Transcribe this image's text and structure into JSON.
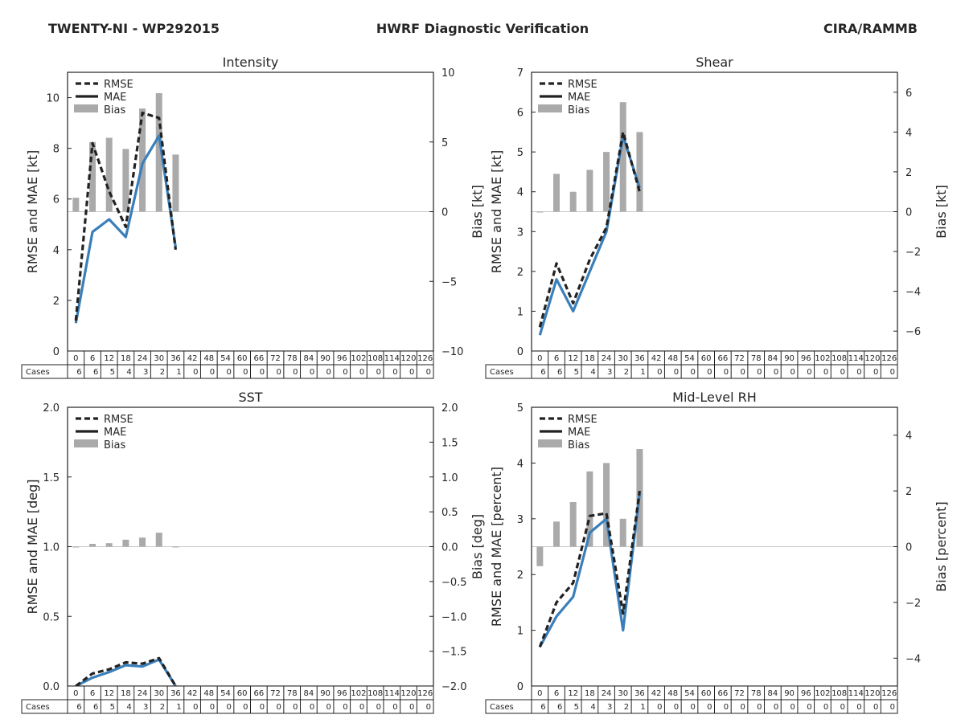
{
  "header": {
    "left": "TWENTY-NI - WP292015",
    "center": "HWRF Diagnostic Verification",
    "right": "CIRA/RAMMB"
  },
  "legend": {
    "rmse": "RMSE",
    "mae": "MAE",
    "bias": "Bias"
  },
  "colors": {
    "rmse": "#222222",
    "mae": "#3a7fba",
    "bias": "#aaaaaa",
    "zero": "#c8c8c8"
  },
  "table": {
    "cases_label": "Cases",
    "hours": [
      "0",
      "6",
      "12",
      "18",
      "24",
      "30",
      "36",
      "42",
      "48",
      "54",
      "60",
      "66",
      "72",
      "78",
      "84",
      "90",
      "96",
      "102",
      "108",
      "114",
      "120",
      "126"
    ],
    "cases": [
      "6",
      "6",
      "5",
      "4",
      "3",
      "2",
      "1",
      "0",
      "0",
      "0",
      "0",
      "0",
      "0",
      "0",
      "0",
      "0",
      "0",
      "0",
      "0",
      "0",
      "0",
      "0"
    ]
  },
  "chart_data": [
    {
      "type": "line",
      "title": "Intensity",
      "ylabel": "RMSE and MAE [kt]",
      "y2label": "Bias [kt]",
      "ylim": [
        0,
        11
      ],
      "yticks": [
        "0",
        "2",
        "4",
        "6",
        "8",
        "10"
      ],
      "y2lim": [
        -10,
        10
      ],
      "y2ticks": [
        "−10",
        "−5",
        "0",
        "5",
        "10"
      ],
      "x": [
        0,
        6,
        12,
        18,
        24,
        30,
        36
      ],
      "series": [
        {
          "name": "RMSE",
          "values": [
            1.2,
            8.2,
            6.3,
            4.9,
            9.4,
            9.2,
            4.0
          ]
        },
        {
          "name": "MAE",
          "values": [
            1.1,
            4.7,
            5.2,
            4.5,
            7.4,
            8.5,
            4.1
          ]
        },
        {
          "name": "Bias",
          "values": [
            1.0,
            5.0,
            5.3,
            4.5,
            7.4,
            8.5,
            4.1
          ]
        }
      ]
    },
    {
      "type": "line",
      "title": "Shear",
      "ylabel": "RMSE and MAE [kt]",
      "y2label": "Bias [kt]",
      "ylim": [
        0,
        7
      ],
      "yticks": [
        "0",
        "1",
        "2",
        "3",
        "4",
        "5",
        "6",
        "7"
      ],
      "y2lim": [
        -7,
        7
      ],
      "y2ticks": [
        "−6",
        "−4",
        "−2",
        "0",
        "2",
        "4",
        "6"
      ],
      "x": [
        0,
        6,
        12,
        18,
        24,
        30,
        36
      ],
      "series": [
        {
          "name": "RMSE",
          "values": [
            0.6,
            2.2,
            1.2,
            2.3,
            3.1,
            5.5,
            4.0
          ]
        },
        {
          "name": "MAE",
          "values": [
            0.4,
            1.8,
            1.0,
            2.0,
            3.0,
            5.4,
            4.1
          ]
        },
        {
          "name": "Bias",
          "values": [
            0.0,
            1.9,
            1.0,
            2.1,
            3.0,
            5.5,
            4.0
          ]
        }
      ]
    },
    {
      "type": "line",
      "title": "SST",
      "ylabel": "RMSE and MAE [deg]",
      "y2label": "Bias [deg]",
      "ylim": [
        0,
        2
      ],
      "yticks": [
        "0.0",
        "0.5",
        "1.0",
        "1.5",
        "2.0"
      ],
      "y2lim": [
        -2,
        2
      ],
      "y2ticks": [
        "−2.0",
        "−1.5",
        "−1.0",
        "−0.5",
        "0.0",
        "0.5",
        "1.0",
        "1.5",
        "2.0"
      ],
      "x": [
        0,
        6,
        12,
        18,
        24,
        30,
        36
      ],
      "series": [
        {
          "name": "RMSE",
          "values": [
            0.0,
            0.09,
            0.12,
            0.17,
            0.16,
            0.2,
            0.0
          ]
        },
        {
          "name": "MAE",
          "values": [
            0.0,
            0.06,
            0.1,
            0.15,
            0.14,
            0.19,
            0.0
          ]
        },
        {
          "name": "Bias",
          "values": [
            0.0,
            0.04,
            0.05,
            0.1,
            0.13,
            0.2,
            0.0
          ]
        }
      ]
    },
    {
      "type": "line",
      "title": "Mid-Level RH",
      "ylabel": "RMSE and MAE [percent]",
      "y2label": "Bias [percent]",
      "ylim": [
        0,
        5
      ],
      "yticks": [
        "0",
        "1",
        "2",
        "3",
        "4",
        "5"
      ],
      "y2lim": [
        -5,
        5
      ],
      "y2ticks": [
        "−4",
        "−2",
        "0",
        "2",
        "4"
      ],
      "x": [
        0,
        6,
        12,
        18,
        24,
        30,
        36
      ],
      "series": [
        {
          "name": "RMSE",
          "values": [
            0.7,
            1.5,
            1.85,
            3.05,
            3.1,
            1.3,
            3.5
          ]
        },
        {
          "name": "MAE",
          "values": [
            0.7,
            1.25,
            1.6,
            2.75,
            3.0,
            1.0,
            3.45
          ]
        },
        {
          "name": "Bias",
          "values": [
            -0.7,
            0.9,
            1.6,
            2.7,
            3.0,
            1.0,
            3.5
          ]
        }
      ]
    }
  ]
}
